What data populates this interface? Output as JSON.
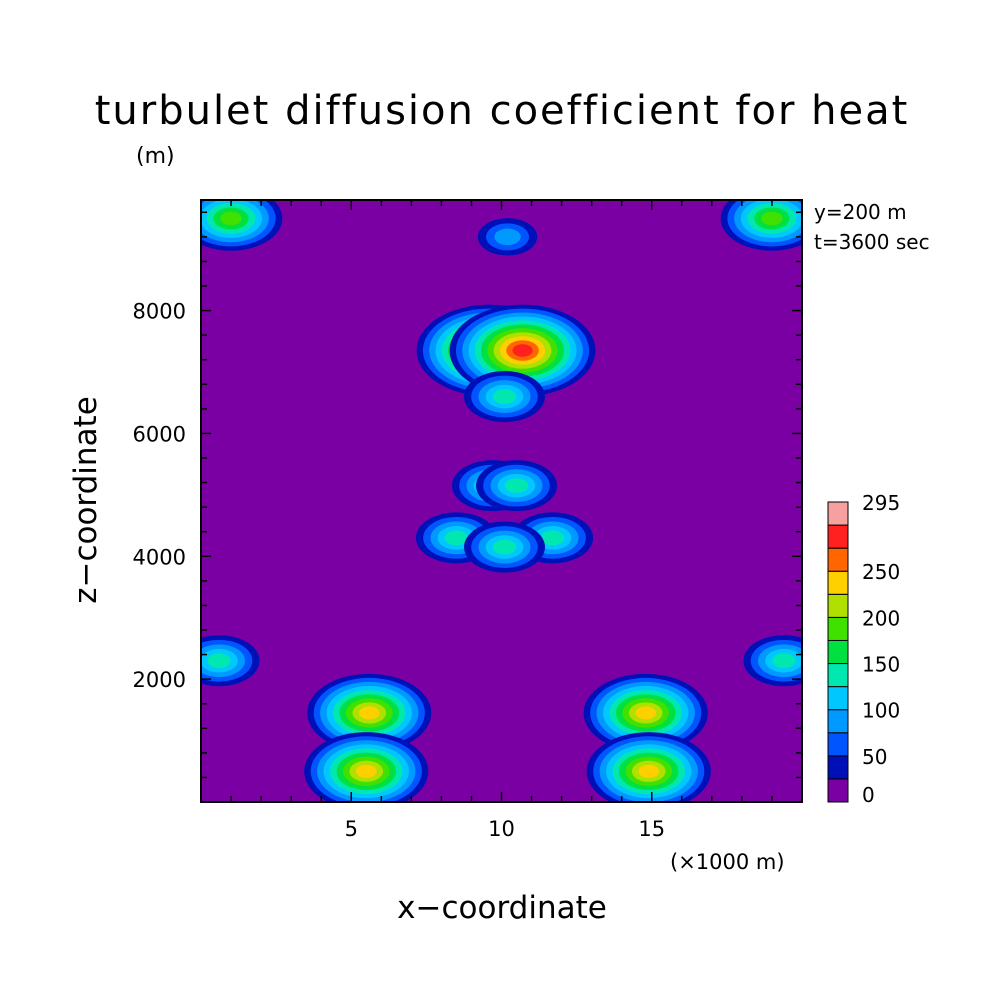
{
  "chart_data": {
    "type": "heatmap",
    "title": "turbulet diffusion coefficient for heat",
    "y_unit_note": "(m)",
    "x_unit_note": "(×1000 m)",
    "xlabel": "x−coordinate",
    "ylabel": "z−coordinate",
    "annotations": [
      "y=200 m",
      "t=3600 sec"
    ],
    "x_range": [
      0,
      20
    ],
    "y_range": [
      0,
      9800
    ],
    "x_ticks": [
      5,
      10,
      15
    ],
    "y_ticks": [
      2000,
      4000,
      6000,
      8000
    ],
    "background_level": "0",
    "colorbar": {
      "levels": [
        {
          "label": "0",
          "color": "#7b00a3"
        },
        {
          "label": "",
          "color": "#0010b8"
        },
        {
          "label": "50",
          "color": "#0055ff"
        },
        {
          "label": "",
          "color": "#0099ff"
        },
        {
          "label": "100",
          "color": "#00c8ff"
        },
        {
          "label": "",
          "color": "#00e8b0"
        },
        {
          "label": "150",
          "color": "#00e040"
        },
        {
          "label": "",
          "color": "#40e000"
        },
        {
          "label": "200",
          "color": "#b0e000"
        },
        {
          "label": "",
          "color": "#ffd000"
        },
        {
          "label": "250",
          "color": "#ff6600"
        },
        {
          "label": "",
          "color": "#ff2020"
        },
        {
          "label": "295",
          "color": "#f7a0a0"
        }
      ]
    },
    "features": [
      {
        "x": 1.0,
        "z": 9500,
        "peak": 150
      },
      {
        "x": 19.0,
        "z": 9500,
        "peak": 150
      },
      {
        "x": 10.2,
        "z": 9200,
        "peak": 50
      },
      {
        "x": 9.6,
        "z": 7350,
        "peak": 250
      },
      {
        "x": 10.7,
        "z": 7350,
        "peak": 250
      },
      {
        "x": 10.1,
        "z": 6600,
        "peak": 100
      },
      {
        "x": 9.7,
        "z": 5150,
        "peak": 100
      },
      {
        "x": 10.5,
        "z": 5150,
        "peak": 100
      },
      {
        "x": 8.5,
        "z": 4300,
        "peak": 100
      },
      {
        "x": 11.7,
        "z": 4300,
        "peak": 100
      },
      {
        "x": 10.1,
        "z": 4150,
        "peak": 100
      },
      {
        "x": 0.6,
        "z": 2300,
        "peak": 100
      },
      {
        "x": 19.4,
        "z": 2300,
        "peak": 100
      },
      {
        "x": 5.6,
        "z": 1450,
        "peak": 200
      },
      {
        "x": 14.8,
        "z": 1450,
        "peak": 200
      },
      {
        "x": 5.5,
        "z": 500,
        "peak": 200
      },
      {
        "x": 14.9,
        "z": 500,
        "peak": 200
      }
    ]
  }
}
